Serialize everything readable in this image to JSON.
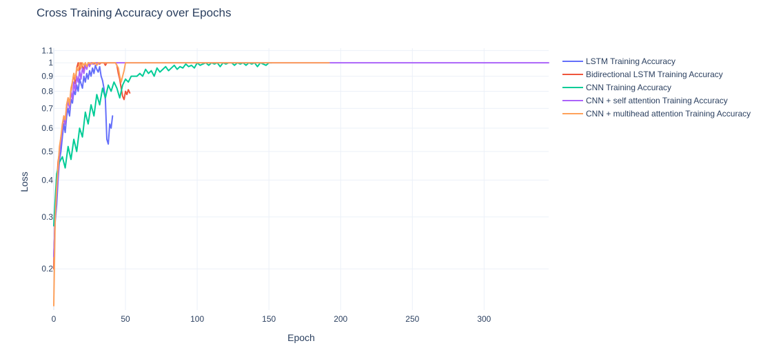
{
  "chart_data": {
    "type": "line",
    "title": "Cross Training Accuracy over Epochs",
    "xlabel": "Epoch",
    "ylabel": "Loss",
    "y_scale": "log",
    "xlim": [
      0,
      345
    ],
    "ylim": [
      0.145,
      1.12
    ],
    "x_ticks": [
      0,
      50,
      100,
      150,
      200,
      250,
      300
    ],
    "x_tick_labels": [
      "0",
      "50",
      "100",
      "150",
      "200",
      "250",
      "300"
    ],
    "y_ticks": [
      0.2,
      0.3,
      0.4,
      0.5,
      0.6,
      0.7,
      0.8,
      0.9,
      1,
      1.1
    ],
    "y_tick_labels": [
      "0.2",
      "0.3",
      "0.4",
      "0.5",
      "0.6",
      "0.7",
      "0.8",
      "0.9",
      "1",
      "1.1"
    ],
    "grid": true,
    "legend_position": "right",
    "series": [
      {
        "name": "LSTM Training Accuracy",
        "color": "#636efa",
        "x": [
          0,
          1,
          2,
          3,
          4,
          5,
          6,
          7,
          8,
          9,
          10,
          11,
          12,
          13,
          14,
          15,
          16,
          17,
          18,
          19,
          20,
          21,
          22,
          23,
          24,
          25,
          26,
          27,
          28,
          29,
          30,
          31,
          32,
          33,
          34,
          35,
          36,
          37,
          38,
          39,
          40,
          41
        ],
        "y": [
          0.22,
          0.29,
          0.33,
          0.4,
          0.47,
          0.5,
          0.56,
          0.62,
          0.58,
          0.66,
          0.7,
          0.66,
          0.75,
          0.73,
          0.8,
          0.78,
          0.84,
          0.8,
          0.88,
          0.85,
          0.82,
          0.9,
          0.86,
          0.92,
          0.88,
          0.94,
          0.9,
          0.96,
          0.92,
          0.98,
          0.95,
          0.93,
          0.97,
          0.9,
          0.87,
          0.82,
          0.75,
          0.55,
          0.53,
          0.62,
          0.6,
          0.66
        ]
      },
      {
        "name": "Bidirectional LSTM Training Accuracy",
        "color": "#ef553b",
        "x": [
          0,
          1,
          2,
          3,
          4,
          5,
          6,
          7,
          8,
          9,
          10,
          11,
          12,
          13,
          14,
          15,
          16,
          17,
          18,
          19,
          20,
          21,
          22,
          23,
          24,
          25,
          26,
          27,
          28,
          29,
          30,
          31,
          32,
          33,
          34,
          35,
          36,
          37,
          38,
          39,
          40,
          41,
          42,
          43,
          44,
          45,
          46,
          47,
          48,
          49,
          50,
          51,
          52,
          53
        ],
        "y": [
          0.2,
          0.33,
          0.38,
          0.46,
          0.5,
          0.56,
          0.6,
          0.65,
          0.62,
          0.72,
          0.76,
          0.73,
          0.8,
          0.86,
          0.92,
          0.85,
          0.96,
          1.0,
          0.94,
          1.0,
          0.97,
          0.95,
          1.0,
          0.96,
          1.0,
          0.98,
          1.0,
          1.0,
          0.99,
          1.0,
          1.0,
          1.0,
          0.99,
          1.0,
          1.0,
          1.0,
          0.98,
          1.0,
          1.0,
          1.0,
          1.0,
          1.0,
          1.0,
          1.0,
          0.98,
          0.92,
          0.88,
          0.82,
          0.77,
          0.75,
          0.8,
          0.78,
          0.81,
          0.79
        ]
      },
      {
        "name": "CNN Training Accuracy",
        "color": "#00cc96",
        "x": [
          0,
          2,
          4,
          6,
          8,
          10,
          12,
          14,
          16,
          18,
          20,
          22,
          24,
          26,
          28,
          30,
          32,
          34,
          36,
          38,
          40,
          42,
          44,
          46,
          48,
          50,
          52,
          54,
          56,
          58,
          60,
          62,
          64,
          66,
          68,
          70,
          72,
          74,
          76,
          78,
          80,
          82,
          84,
          86,
          88,
          90,
          92,
          94,
          96,
          98,
          100,
          102,
          104,
          106,
          108,
          110,
          112,
          114,
          116,
          118,
          120,
          122,
          124,
          126,
          128,
          130,
          132,
          134,
          136,
          138,
          140,
          142,
          144,
          146,
          148,
          150,
          152
        ],
        "y": [
          0.28,
          0.42,
          0.46,
          0.48,
          0.44,
          0.52,
          0.47,
          0.55,
          0.5,
          0.6,
          0.56,
          0.68,
          0.62,
          0.72,
          0.66,
          0.78,
          0.72,
          0.82,
          0.76,
          0.84,
          0.8,
          0.86,
          0.82,
          0.76,
          0.84,
          0.88,
          0.86,
          0.9,
          0.9,
          0.9,
          0.92,
          0.9,
          0.95,
          0.92,
          0.94,
          0.9,
          0.96,
          0.93,
          0.95,
          0.97,
          0.94,
          0.96,
          0.98,
          0.95,
          0.97,
          0.96,
          0.99,
          0.97,
          0.98,
          0.96,
          1.0,
          0.98,
          0.99,
          1.0,
          0.98,
          1.0,
          0.99,
          1.0,
          0.97,
          1.0,
          0.99,
          1.0,
          1.0,
          0.98,
          1.0,
          0.99,
          1.0,
          0.98,
          1.0,
          0.99,
          1.0,
          0.97,
          1.0,
          0.99,
          0.98,
          1.0,
          1.0
        ]
      },
      {
        "name": "CNN + self attention Training Accuracy",
        "color": "#ab63fa",
        "x": [
          0,
          1,
          2,
          3,
          4,
          5,
          6,
          7,
          8,
          9,
          10,
          11,
          12,
          13,
          14,
          15,
          16,
          17,
          18,
          19,
          20,
          21,
          22,
          23,
          24,
          25,
          26,
          27,
          28,
          29,
          30,
          31,
          32,
          33,
          34,
          35,
          36,
          37,
          38,
          39,
          40,
          45,
          50,
          60,
          70,
          80,
          100,
          120,
          150,
          190,
          200,
          250,
          300,
          345
        ],
        "y": [
          0.22,
          0.3,
          0.36,
          0.42,
          0.5,
          0.54,
          0.6,
          0.66,
          0.62,
          0.7,
          0.74,
          0.7,
          0.8,
          0.75,
          0.86,
          0.8,
          0.9,
          0.86,
          0.94,
          0.88,
          0.96,
          0.92,
          0.98,
          0.95,
          1.0,
          0.97,
          1.0,
          0.99,
          1.0,
          1.0,
          1.0,
          0.99,
          1.0,
          1.0,
          1.0,
          1.0,
          1.0,
          1.0,
          1.0,
          1.0,
          1.0,
          1.0,
          1.0,
          1.0,
          1.0,
          1.0,
          1.0,
          1.0,
          1.0,
          1.0,
          1.0,
          1.0,
          1.0,
          1.0
        ]
      },
      {
        "name": "CNN + multihead attention Training Accuracy",
        "color": "#ffa15a",
        "x": [
          0,
          1,
          2,
          3,
          4,
          5,
          6,
          7,
          8,
          9,
          10,
          11,
          12,
          13,
          14,
          15,
          16,
          17,
          18,
          19,
          20,
          21,
          22,
          23,
          24,
          25,
          26,
          27,
          28,
          29,
          30,
          31,
          32,
          33,
          34,
          35,
          36,
          37,
          38,
          39,
          40,
          41,
          42,
          43,
          44,
          45,
          46,
          47,
          48,
          49,
          50,
          51,
          52,
          55,
          60,
          70,
          80,
          100,
          120,
          150,
          170,
          192
        ],
        "y": [
          0.15,
          0.3,
          0.38,
          0.44,
          0.52,
          0.56,
          0.62,
          0.66,
          0.64,
          0.72,
          0.76,
          0.72,
          0.82,
          0.86,
          0.92,
          0.88,
          0.96,
          0.94,
          1.0,
          0.96,
          1.0,
          0.98,
          1.0,
          0.97,
          1.0,
          1.0,
          0.99,
          1.0,
          1.0,
          1.0,
          0.98,
          1.0,
          1.0,
          1.0,
          1.0,
          1.0,
          1.0,
          1.0,
          1.0,
          1.0,
          1.0,
          1.0,
          1.0,
          1.0,
          0.98,
          0.96,
          0.9,
          0.86,
          0.9,
          0.94,
          1.0,
          1.0,
          1.0,
          1.0,
          1.0,
          1.0,
          1.0,
          1.0,
          1.0,
          1.0,
          1.0,
          1.0
        ]
      }
    ]
  }
}
